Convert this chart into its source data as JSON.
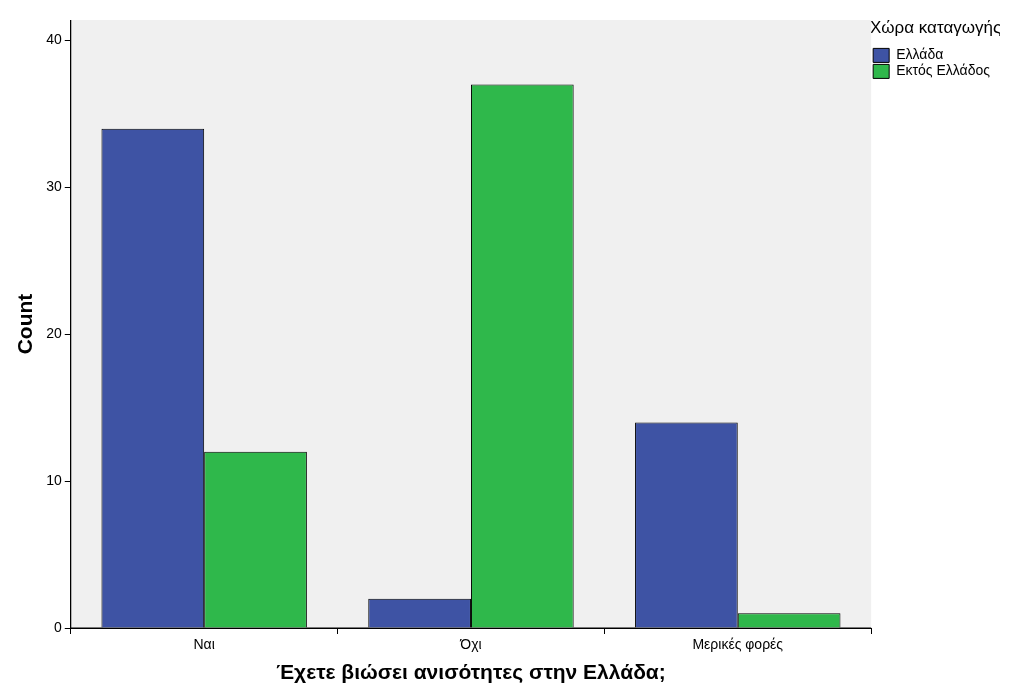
{
  "chart_data": {
    "type": "bar",
    "xlabel": "Έχετε βιώσει ανισότητες στην Ελλάδα;",
    "ylabel": "Count",
    "legend_title": "Χώρα καταγωγής",
    "categories": [
      "Ναι",
      "Όχι",
      "Μερικές φορές"
    ],
    "series": [
      {
        "name": "Ελλάδα",
        "color": "#3e53a4",
        "values": [
          34,
          2,
          14
        ]
      },
      {
        "name": "Εκτός Ελλάδος",
        "color": "#2fb84b",
        "values": [
          12,
          37,
          1
        ]
      }
    ],
    "ylim": [
      0,
      41.4
    ],
    "yticks": [
      0,
      10,
      20,
      30,
      40
    ],
    "grid": false,
    "legend": "top right"
  }
}
